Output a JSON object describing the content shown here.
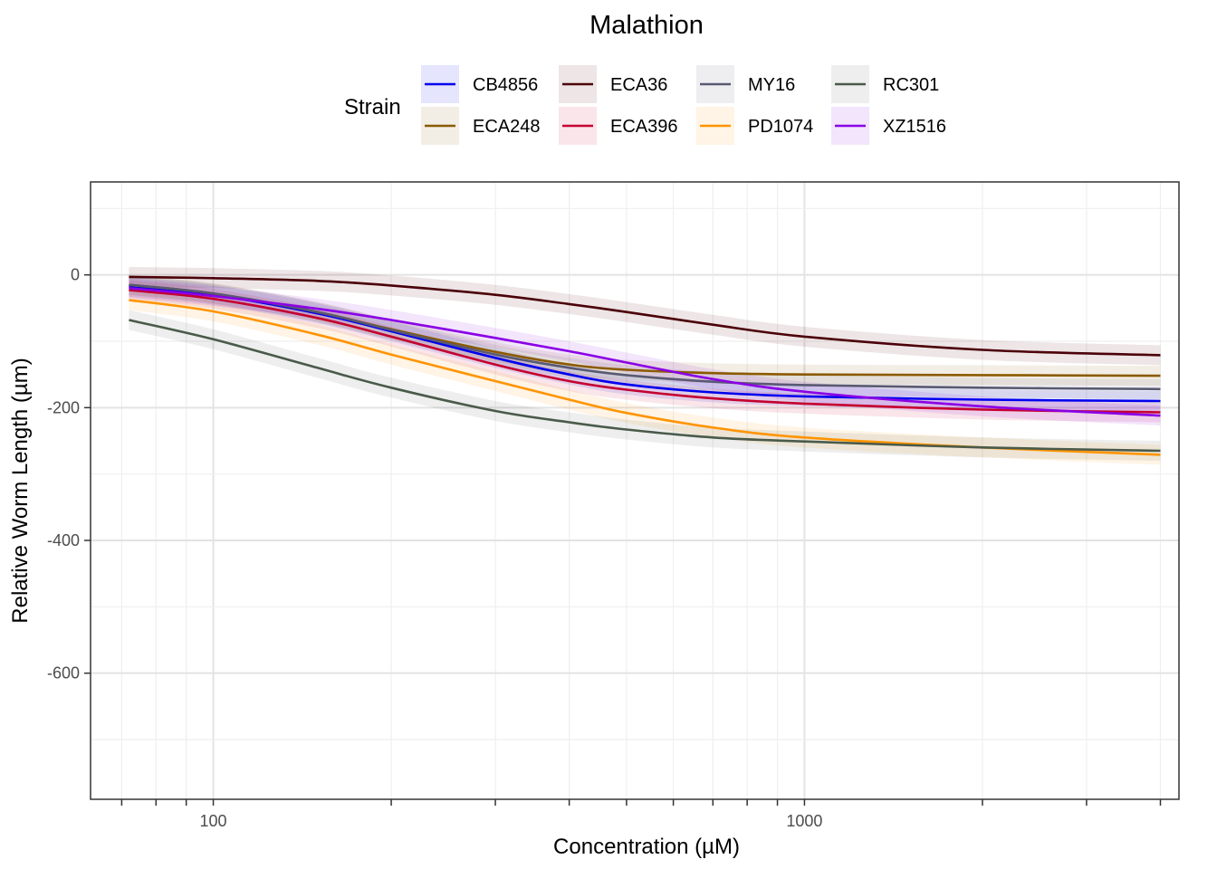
{
  "chart_data": {
    "type": "line",
    "title": "Malathion",
    "xlabel": "Concentration (µM)",
    "ylabel": "Relative Worm Length (µm)",
    "x_scale": "log10",
    "xlim": [
      62,
      4300
    ],
    "ylim": [
      -790,
      140
    ],
    "x_ticks": [
      100,
      1000
    ],
    "x_tick_labels": [
      "100",
      "1000"
    ],
    "y_ticks": [
      0,
      -200,
      -400,
      -600
    ],
    "y_tick_labels": [
      "0",
      "-200",
      "-400",
      "-600"
    ],
    "grid": true,
    "confidence_bands": true,
    "legend": {
      "title": "Strain",
      "position": "top"
    },
    "x": [
      72,
      100,
      150,
      200,
      300,
      400,
      500,
      700,
      1000,
      2000,
      4000
    ],
    "series": [
      {
        "name": "CB4856",
        "color": "#0000ee",
        "values": [
          -18,
          -30,
          -58,
          -85,
          -125,
          -150,
          -165,
          -177,
          -183,
          -188,
          -190
        ]
      },
      {
        "name": "ECA248",
        "color": "#8b5a00",
        "values": [
          -15,
          -28,
          -56,
          -82,
          -116,
          -135,
          -143,
          -148,
          -150,
          -151,
          -152
        ]
      },
      {
        "name": "ECA36",
        "color": "#4b0008",
        "values": [
          -3,
          -5,
          -9,
          -16,
          -30,
          -44,
          -56,
          -75,
          -93,
          -113,
          -121
        ]
      },
      {
        "name": "ECA396",
        "color": "#c40030",
        "values": [
          -23,
          -36,
          -65,
          -93,
          -135,
          -160,
          -173,
          -186,
          -194,
          -203,
          -207
        ]
      },
      {
        "name": "MY16",
        "color": "#595973",
        "values": [
          -15,
          -28,
          -56,
          -83,
          -120,
          -140,
          -151,
          -161,
          -166,
          -170,
          -172
        ]
      },
      {
        "name": "PD1074",
        "color": "#ff9400",
        "values": [
          -38,
          -55,
          -90,
          -120,
          -160,
          -188,
          -208,
          -230,
          -245,
          -260,
          -271
        ]
      },
      {
        "name": "RC301",
        "color": "#4a5a4a",
        "values": [
          -68,
          -97,
          -140,
          -170,
          -205,
          -222,
          -233,
          -245,
          -251,
          -260,
          -265
        ]
      },
      {
        "name": "XZ1516",
        "color": "#8a00e6",
        "values": [
          -20,
          -32,
          -51,
          -68,
          -95,
          -115,
          -132,
          -157,
          -176,
          -198,
          -212
        ]
      }
    ]
  }
}
